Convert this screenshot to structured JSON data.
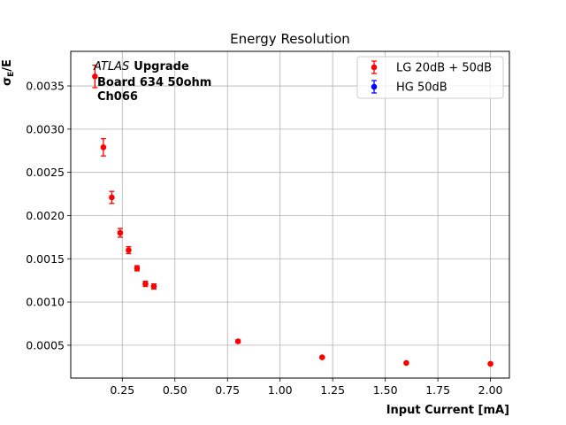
{
  "chart_data": {
    "type": "scatter",
    "title": "Energy Resolution",
    "xlabel": "Input Current [mA]",
    "ylabel": "σ",
    "ylabel_sub": "E",
    "ylabel_tail": "/E",
    "xlim": [
      0.005,
      2.09
    ],
    "ylim": [
      0.00012,
      0.0039
    ],
    "xticks": [
      0.25,
      0.5,
      0.75,
      1.0,
      1.25,
      1.5,
      1.75,
      2.0
    ],
    "xtick_labels": [
      "0.25",
      "0.50",
      "0.75",
      "1.00",
      "1.25",
      "1.50",
      "1.75",
      "2.00"
    ],
    "yticks": [
      0.0005,
      0.001,
      0.0015,
      0.002,
      0.0025,
      0.003,
      0.0035
    ],
    "ytick_labels": [
      "0.0005",
      "0.0010",
      "0.0015",
      "0.0020",
      "0.0025",
      "0.0030",
      "0.0035"
    ],
    "grid": true,
    "legend_position": "upper-right",
    "annotation": {
      "line1_italic": "ATLAS",
      "line1_bold": "Upgrade",
      "line2": "Board 634 50ohm",
      "line3": "Ch066"
    },
    "series": [
      {
        "name": "LG 20dB + 50dB",
        "color": "#ff0000",
        "x": [
          0.12,
          0.16,
          0.2,
          0.24,
          0.28,
          0.32,
          0.36,
          0.4,
          0.8,
          1.2,
          1.6,
          2.0
        ],
        "y": [
          0.00361,
          0.00279,
          0.00221,
          0.0018,
          0.0016,
          0.00139,
          0.00121,
          0.00118,
          0.000545,
          0.00036,
          0.000295,
          0.000285
        ],
        "yerr": [
          0.00013,
          0.0001,
          7e-05,
          5e-05,
          4e-05,
          3e-05,
          3e-05,
          3e-05,
          1.5e-05,
          1e-05,
          1e-05,
          1e-05
        ]
      },
      {
        "name": "HG 50dB",
        "color": "#0000ff",
        "x": [],
        "y": [],
        "yerr": []
      }
    ]
  }
}
